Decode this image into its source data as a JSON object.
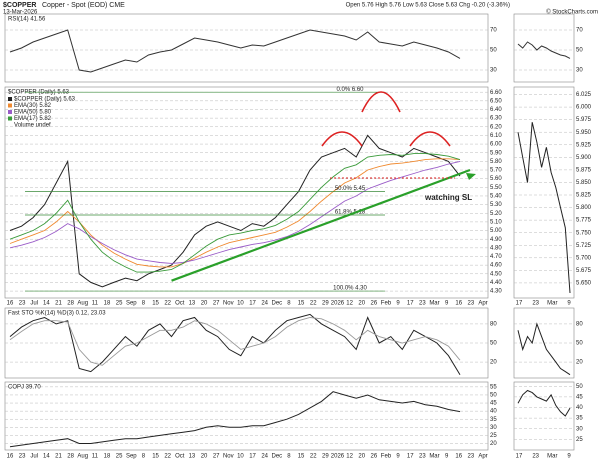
{
  "header": {
    "symbol": "$COPPER",
    "description": "Copper - Spot (EOD) CME",
    "date": "13-Mar-2026",
    "quote": "Open 5.76 High 5.76 Low 5.63 Close 5.63 Chg -0.20 (-3.36%)",
    "credit": "© StockCharts.com"
  },
  "chart_data": [
    {
      "type": "line",
      "title": "RSI(14) 41.56",
      "ylim": [
        18,
        86
      ],
      "yticks": [
        30,
        50,
        70
      ],
      "grid": true,
      "series": [
        {
          "name": "RSI(14)",
          "color": "#333333",
          "values": [
            48,
            52,
            58,
            62,
            66,
            70,
            30,
            28,
            32,
            36,
            40,
            38,
            45,
            48,
            50,
            56,
            62,
            60,
            58,
            55,
            52,
            55,
            54,
            58,
            62,
            66,
            70,
            68,
            66,
            64,
            60,
            68,
            58,
            56,
            54,
            58,
            55,
            52,
            48,
            41.56
          ]
        }
      ]
    },
    {
      "type": "line",
      "title": "$COPPER (Daily) 5.63",
      "ylim": [
        4.22,
        6.66
      ],
      "yticks": [
        {
          "value": 4.3,
          "label": "4.30"
        },
        {
          "value": 4.4,
          "label": "4.40"
        },
        {
          "value": 4.5,
          "label": "4.50"
        },
        {
          "value": 4.6,
          "label": "4.60"
        },
        {
          "value": 4.7,
          "label": "4.70"
        },
        {
          "value": 4.8,
          "label": "4.80"
        },
        {
          "value": 4.9,
          "label": "4.90"
        },
        {
          "value": 5,
          "label": "5.00"
        },
        {
          "value": 5.1,
          "label": "5.10"
        },
        {
          "value": 5.2,
          "label": "5.20"
        },
        {
          "value": 5.3,
          "label": "5.30"
        },
        {
          "value": 5.4,
          "label": "5.40"
        },
        {
          "value": 5.5,
          "label": "5.50"
        },
        {
          "value": 5.6,
          "label": "5.60"
        },
        {
          "value": 5.7,
          "label": "5.70"
        },
        {
          "value": 5.8,
          "label": "5.80"
        },
        {
          "value": 5.9,
          "label": "5.90"
        },
        {
          "value": 6,
          "label": "6.00"
        },
        {
          "value": 6.1,
          "label": "6.10"
        },
        {
          "value": 6.2,
          "label": "6.20"
        },
        {
          "value": 6.3,
          "label": "6.30"
        },
        {
          "value": 6.4,
          "label": "6.40"
        },
        {
          "value": 6.5,
          "label": "6.50"
        },
        {
          "value": 6.6,
          "label": "6.60"
        }
      ],
      "grid": true,
      "series": [
        {
          "name": "$COPPER (Daily) 5.63",
          "color": "#222222",
          "values": [
            5.0,
            5.05,
            5.15,
            5.3,
            5.55,
            5.8,
            4.5,
            4.4,
            4.35,
            4.4,
            4.45,
            4.42,
            4.5,
            4.55,
            4.6,
            4.75,
            4.95,
            5.05,
            5.1,
            5.05,
            5.0,
            5.08,
            5.05,
            5.15,
            5.3,
            5.45,
            5.7,
            5.85,
            5.9,
            5.95,
            5.85,
            6.1,
            5.95,
            5.9,
            5.85,
            5.95,
            5.9,
            5.85,
            5.8,
            5.63
          ]
        },
        {
          "name": "EMA(30) 5.82",
          "color": "#f08a30",
          "values": [
            4.85,
            4.9,
            4.95,
            5.0,
            5.1,
            5.22,
            5.1,
            4.95,
            4.83,
            4.74,
            4.67,
            4.61,
            4.59,
            4.58,
            4.58,
            4.62,
            4.68,
            4.75,
            4.81,
            4.86,
            4.89,
            4.92,
            4.95,
            4.98,
            5.04,
            5.11,
            5.22,
            5.34,
            5.45,
            5.55,
            5.61,
            5.7,
            5.74,
            5.77,
            5.78,
            5.8,
            5.82,
            5.83,
            5.83,
            5.82
          ]
        },
        {
          "name": "EMA(50) 5.80",
          "color": "#9a5cc8",
          "values": [
            4.8,
            4.83,
            4.87,
            4.92,
            4.99,
            5.08,
            5.02,
            4.93,
            4.85,
            4.78,
            4.72,
            4.67,
            4.65,
            4.63,
            4.62,
            4.63,
            4.66,
            4.7,
            4.74,
            4.78,
            4.81,
            4.84,
            4.86,
            4.89,
            4.93,
            4.99,
            5.07,
            5.16,
            5.25,
            5.34,
            5.4,
            5.48,
            5.53,
            5.58,
            5.62,
            5.66,
            5.7,
            5.73,
            5.77,
            5.8
          ]
        },
        {
          "name": "EMA(17) 5.82",
          "color": "#3a9a3a",
          "values": [
            4.9,
            4.95,
            5.0,
            5.08,
            5.2,
            5.35,
            5.1,
            4.9,
            4.75,
            4.65,
            4.58,
            4.52,
            4.52,
            4.53,
            4.55,
            4.62,
            4.72,
            4.82,
            4.9,
            4.95,
            4.97,
            5.0,
            5.02,
            5.06,
            5.13,
            5.22,
            5.36,
            5.5,
            5.62,
            5.72,
            5.76,
            5.85,
            5.87,
            5.88,
            5.87,
            5.89,
            5.89,
            5.88,
            5.86,
            5.82
          ]
        }
      ],
      "volume_label": "Volume undef",
      "fib": [
        {
          "label": "0.0% 6.60",
          "value": 6.6
        },
        {
          "label": "50.0% 5.45",
          "value": 5.45
        },
        {
          "label": "61.8% 5.18",
          "value": 5.18
        },
        {
          "label": "100.0% 4.30",
          "value": 4.3
        }
      ],
      "trendline": [
        4.42,
        5.7
      ],
      "annotation": "watching SL",
      "x_labels": [
        "16",
        "23",
        "Jul",
        "14",
        "21",
        "28",
        "Aug",
        "11",
        "18",
        "25",
        "Sep",
        "8",
        "15",
        "22",
        "Oct",
        "13",
        "20",
        "27",
        "Nov",
        "10",
        "17",
        "24",
        "Dec",
        "8",
        "15",
        "22",
        "29",
        "2026",
        "12",
        "20",
        "26",
        "Feb",
        "9",
        "17",
        "23",
        "Mar",
        "9",
        "16",
        "23",
        "Apr"
      ]
    },
    {
      "type": "line",
      "title": "Fast STO %K(14) %D(3) 0.12, 23.03",
      "ylim": [
        -5,
        105
      ],
      "yticks": [
        20,
        50,
        80
      ],
      "grid": true,
      "series": [
        {
          "name": "%K(14)",
          "color": "#222222",
          "values": [
            60,
            75,
            85,
            90,
            80,
            85,
            10,
            5,
            20,
            40,
            60,
            45,
            70,
            80,
            60,
            85,
            90,
            70,
            60,
            40,
            30,
            60,
            50,
            70,
            85,
            90,
            95,
            80,
            70,
            60,
            40,
            90,
            50,
            60,
            40,
            70,
            60,
            50,
            30,
            0.12
          ]
        },
        {
          "name": "%D(3)",
          "color": "#999999",
          "values": [
            55,
            68,
            80,
            85,
            85,
            83,
            40,
            20,
            15,
            30,
            45,
            50,
            60,
            70,
            70,
            75,
            85,
            80,
            70,
            55,
            40,
            45,
            50,
            60,
            75,
            85,
            90,
            88,
            80,
            70,
            55,
            70,
            60,
            55,
            50,
            55,
            60,
            55,
            45,
            23.03
          ]
        }
      ]
    },
    {
      "type": "line",
      "title": "COPJ 39.70",
      "ylim": [
        16,
        58
      ],
      "yticks": [
        20,
        25,
        30,
        35,
        40,
        45,
        50,
        55
      ],
      "grid": true,
      "series": [
        {
          "name": "COPJ",
          "color": "#222222",
          "values": [
            18,
            19,
            20,
            21,
            22,
            23,
            20,
            20,
            21,
            22,
            23,
            23,
            24,
            25,
            26,
            27,
            28,
            30,
            31,
            30,
            30,
            31,
            31,
            33,
            35,
            38,
            42,
            46,
            52,
            50,
            48,
            50,
            47,
            46,
            45,
            46,
            44,
            43,
            41,
            39.7
          ]
        }
      ]
    },
    {
      "type": "line",
      "ylim": [
        18,
        86
      ],
      "yticks": [
        30,
        50,
        70
      ],
      "grid": true,
      "series": [
        {
          "name": "RSI",
          "color": "#333333",
          "values": [
            56,
            52,
            58,
            55,
            50,
            54,
            52,
            49,
            47,
            45,
            44,
            41.56
          ]
        }
      ]
    },
    {
      "type": "line",
      "ylim": [
        5.62,
        6.04
      ],
      "yticks": [
        {
          "value": 5.65,
          "label": "5.650"
        },
        {
          "value": 5.675,
          "label": "5.675"
        },
        {
          "value": 5.7,
          "label": "5.700"
        },
        {
          "value": 5.725,
          "label": "5.725"
        },
        {
          "value": 5.75,
          "label": "5.750"
        },
        {
          "value": 5.775,
          "label": "5.775"
        },
        {
          "value": 5.8,
          "label": "5.800"
        },
        {
          "value": 5.825,
          "label": "5.825"
        },
        {
          "value": 5.85,
          "label": "5.850"
        },
        {
          "value": 5.875,
          "label": "5.875"
        },
        {
          "value": 5.9,
          "label": "5.900"
        },
        {
          "value": 5.925,
          "label": "5.925"
        },
        {
          "value": 5.95,
          "label": "5.950"
        },
        {
          "value": 5.975,
          "label": "5.975"
        },
        {
          "value": 6,
          "label": "6.000"
        },
        {
          "value": 6.025,
          "label": "6.025"
        }
      ],
      "grid": true,
      "series": [
        {
          "name": "$COPPER",
          "color": "#222222",
          "values": [
            5.95,
            5.9,
            5.85,
            5.97,
            5.93,
            5.88,
            5.92,
            5.87,
            5.84,
            5.8,
            5.76,
            5.63
          ]
        }
      ],
      "x_labels": [
        "17",
        "23",
        "Mar",
        "9"
      ]
    },
    {
      "type": "line",
      "ylim": [
        -5,
        105
      ],
      "yticks": [
        20,
        50,
        80
      ],
      "grid": true,
      "series": [
        {
          "name": "%K",
          "color": "#222222",
          "values": [
            70,
            40,
            60,
            50,
            80,
            60,
            40,
            30,
            20,
            10,
            5,
            0.12
          ]
        }
      ]
    },
    {
      "type": "line",
      "ylim": [
        20,
        52
      ],
      "yticks": [
        25,
        30,
        35,
        40,
        45,
        50
      ],
      "grid": true,
      "series": [
        {
          "name": "COPJ",
          "color": "#222222",
          "values": [
            42,
            46,
            48,
            47,
            45,
            44,
            43,
            46,
            41,
            38,
            36,
            39.7
          ]
        }
      ]
    }
  ]
}
